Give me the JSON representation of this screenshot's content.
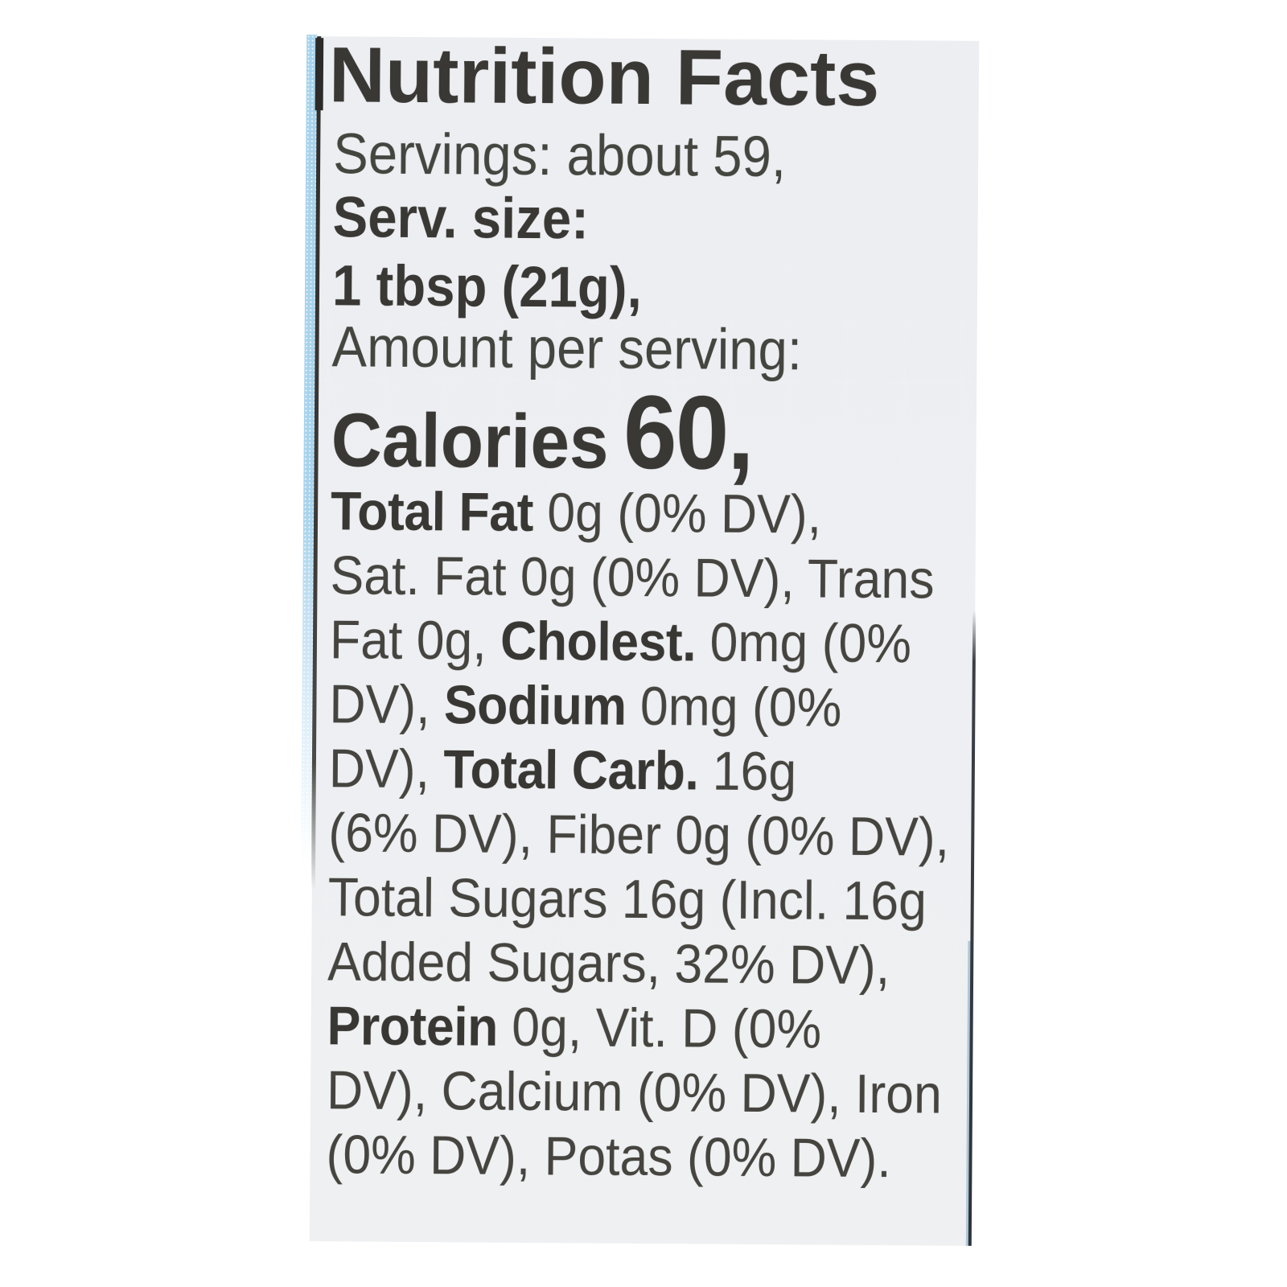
{
  "label": {
    "background": "#edeff2",
    "text_color": "#454540",
    "bold_text_color": "#393733",
    "edge_strip_color": "#a8d3ec",
    "border_color": "#2e2d2b",
    "title": "Nutrition Facts",
    "servings_line": "Servings: about 59,",
    "serving_size_label": "Serv. size:",
    "serving_size_value": "1 tbsp (21g),",
    "amount_line": "Amount per serving:",
    "calories_word": "Calories",
    "calories_value": "60,",
    "body_lines": [
      [
        {
          "t": "Total Fat",
          "b": true
        },
        {
          "t": " 0g (0% DV),",
          "b": false
        }
      ],
      [
        {
          "t": "Sat. Fat 0g (0% DV), Trans",
          "b": false
        }
      ],
      [
        {
          "t": "Fat 0g, ",
          "b": false
        },
        {
          "t": "Cholest.",
          "b": true
        },
        {
          "t": " 0mg (0%",
          "b": false
        }
      ],
      [
        {
          "t": "DV), ",
          "b": false
        },
        {
          "t": "Sodium",
          "b": true
        },
        {
          "t": " 0mg (0%",
          "b": false
        }
      ],
      [
        {
          "t": "DV), ",
          "b": false
        },
        {
          "t": "Total Carb.",
          "b": true
        },
        {
          "t": " 16g",
          "b": false
        }
      ],
      [
        {
          "t": "(6% DV), Fiber 0g (0% DV),",
          "b": false
        }
      ],
      [
        {
          "t": "Total Sugars 16g (Incl. 16g",
          "b": false
        }
      ],
      [
        {
          "t": "Added Sugars, 32% DV),",
          "b": false
        }
      ],
      [
        {
          "t": "Protein",
          "b": true
        },
        {
          "t": " 0g, Vit. D (0%",
          "b": false
        }
      ],
      [
        {
          "t": "DV), Calcium (0% DV), Iron",
          "b": false
        }
      ],
      [
        {
          "t": "(0% DV), Potas (0% DV).",
          "b": false
        }
      ]
    ],
    "nutrition_facts": {
      "servings": "about 59",
      "serving_size": "1 tbsp (21g)",
      "calories": "60",
      "nutrients": [
        {
          "name": "Total Fat",
          "amount": "0g",
          "dv": "0%"
        },
        {
          "name": "Sat. Fat",
          "amount": "0g",
          "dv": "0%"
        },
        {
          "name": "Trans Fat",
          "amount": "0g",
          "dv": ""
        },
        {
          "name": "Cholest.",
          "amount": "0mg",
          "dv": "0%"
        },
        {
          "name": "Sodium",
          "amount": "0mg",
          "dv": "0%"
        },
        {
          "name": "Total Carb.",
          "amount": "16g",
          "dv": "6%"
        },
        {
          "name": "Fiber",
          "amount": "0g",
          "dv": "0%"
        },
        {
          "name": "Total Sugars",
          "amount": "16g",
          "dv": ""
        },
        {
          "name": "Added Sugars",
          "amount": "16g",
          "dv": "32%"
        },
        {
          "name": "Protein",
          "amount": "0g",
          "dv": ""
        },
        {
          "name": "Vit. D",
          "amount": "",
          "dv": "0%"
        },
        {
          "name": "Calcium",
          "amount": "",
          "dv": "0%"
        },
        {
          "name": "Iron",
          "amount": "",
          "dv": "0%"
        },
        {
          "name": "Potas",
          "amount": "",
          "dv": "0%"
        }
      ]
    }
  }
}
